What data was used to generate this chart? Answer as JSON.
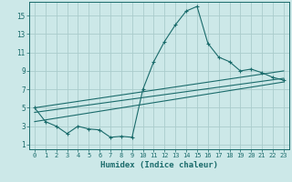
{
  "title": "",
  "xlabel": "Humidex (Indice chaleur)",
  "bg_color": "#cce8e8",
  "line_color": "#1a6b6b",
  "grid_color": "#aacccc",
  "xlim": [
    -0.5,
    23.5
  ],
  "ylim": [
    0.5,
    16.5
  ],
  "xticks": [
    0,
    1,
    2,
    3,
    4,
    5,
    6,
    7,
    8,
    9,
    10,
    11,
    12,
    13,
    14,
    15,
    16,
    17,
    18,
    19,
    20,
    21,
    22,
    23
  ],
  "yticks": [
    1,
    3,
    5,
    7,
    9,
    11,
    13,
    15
  ],
  "line1_x": [
    0,
    1,
    2,
    3,
    4,
    5,
    6,
    7,
    8,
    9,
    10,
    11,
    12,
    13,
    14,
    15,
    16,
    17,
    18,
    19,
    20,
    21,
    22,
    23
  ],
  "line1_y": [
    5.0,
    3.5,
    3.0,
    2.2,
    3.0,
    2.7,
    2.6,
    1.8,
    1.9,
    1.8,
    7.0,
    10.0,
    12.2,
    14.0,
    15.5,
    16.0,
    12.0,
    10.5,
    10.0,
    9.0,
    9.2,
    8.8,
    8.3,
    8.0
  ],
  "line2_x": [
    0,
    23
  ],
  "line2_y": [
    5.0,
    9.0
  ],
  "line3_x": [
    0,
    23
  ],
  "line3_y": [
    4.5,
    8.2
  ],
  "line4_x": [
    0,
    23
  ],
  "line4_y": [
    3.5,
    7.8
  ]
}
